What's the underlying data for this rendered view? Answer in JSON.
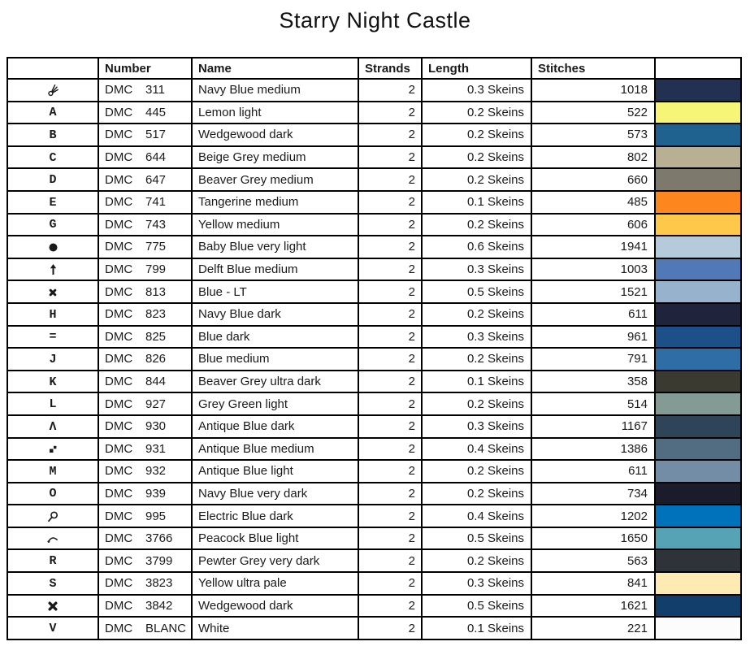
{
  "title": "Starry Night Castle",
  "table": {
    "headers": [
      "",
      "Number",
      "Name",
      "Strands",
      "Length",
      "Stitches",
      ""
    ],
    "rows": [
      {
        "symbol": {
          "type": "icon",
          "icon": "shears-icon"
        },
        "brand": "DMC",
        "code": "311",
        "name": "Navy Blue medium",
        "strands": "2",
        "length": "0.3 Skeins",
        "stitches": "1018",
        "color": "#223152"
      },
      {
        "symbol": {
          "type": "text",
          "glyph": "A"
        },
        "brand": "DMC",
        "code": "445",
        "name": "Lemon light",
        "strands": "2",
        "length": "0.2 Skeins",
        "stitches": "522",
        "color": "#f7f577"
      },
      {
        "symbol": {
          "type": "text",
          "glyph": "B"
        },
        "brand": "DMC",
        "code": "517",
        "name": "Wedgewood dark",
        "strands": "2",
        "length": "0.2 Skeins",
        "stitches": "573",
        "color": "#20628f"
      },
      {
        "symbol": {
          "type": "text",
          "glyph": "C"
        },
        "brand": "DMC",
        "code": "644",
        "name": "Beige Grey medium",
        "strands": "2",
        "length": "0.2 Skeins",
        "stitches": "802",
        "color": "#b9b094"
      },
      {
        "symbol": {
          "type": "text",
          "glyph": "D"
        },
        "brand": "DMC",
        "code": "647",
        "name": "Beaver Grey medium",
        "strands": "2",
        "length": "0.2 Skeins",
        "stitches": "660",
        "color": "#7d796c"
      },
      {
        "symbol": {
          "type": "text",
          "glyph": "E"
        },
        "brand": "DMC",
        "code": "741",
        "name": "Tangerine medium",
        "strands": "2",
        "length": "0.1 Skeins",
        "stitches": "485",
        "color": "#fe861e"
      },
      {
        "symbol": {
          "type": "text",
          "glyph": "G"
        },
        "brand": "DMC",
        "code": "743",
        "name": "Yellow medium",
        "strands": "2",
        "length": "0.2 Skeins",
        "stitches": "606",
        "color": "#fec84b"
      },
      {
        "symbol": {
          "type": "icon",
          "icon": "filled-circle-icon"
        },
        "brand": "DMC",
        "code": "775",
        "name": "Baby Blue very light",
        "strands": "2",
        "length": "0.6 Skeins",
        "stitches": "1941",
        "color": "#b5cbdc"
      },
      {
        "symbol": {
          "type": "icon",
          "icon": "up-arrow-icon"
        },
        "brand": "DMC",
        "code": "799",
        "name": "Delft Blue medium",
        "strands": "2",
        "length": "0.3 Skeins",
        "stitches": "1003",
        "color": "#5179b7"
      },
      {
        "symbol": {
          "type": "icon",
          "icon": "heavy-asterisk-icon"
        },
        "brand": "DMC",
        "code": "813",
        "name": "Blue - LT",
        "strands": "2",
        "length": "0.5 Skeins",
        "stitches": "1521",
        "color": "#96b2cd"
      },
      {
        "symbol": {
          "type": "text",
          "glyph": "H"
        },
        "brand": "DMC",
        "code": "823",
        "name": "Navy Blue dark",
        "strands": "2",
        "length": "0.2 Skeins",
        "stitches": "611",
        "color": "#20233c"
      },
      {
        "symbol": {
          "type": "text",
          "glyph": "="
        },
        "brand": "DMC",
        "code": "825",
        "name": "Blue dark",
        "strands": "2",
        "length": "0.3 Skeins",
        "stitches": "961",
        "color": "#1d4f88"
      },
      {
        "symbol": {
          "type": "text",
          "glyph": "J"
        },
        "brand": "DMC",
        "code": "826",
        "name": "Blue medium",
        "strands": "2",
        "length": "0.2 Skeins",
        "stitches": "791",
        "color": "#2f6da7"
      },
      {
        "symbol": {
          "type": "text",
          "glyph": "K"
        },
        "brand": "DMC",
        "code": "844",
        "name": "Beaver Grey ultra dark",
        "strands": "2",
        "length": "0.1 Skeins",
        "stitches": "358",
        "color": "#3b3a31"
      },
      {
        "symbol": {
          "type": "text",
          "glyph": "L"
        },
        "brand": "DMC",
        "code": "927",
        "name": "Grey Green light",
        "strands": "2",
        "length": "0.2 Skeins",
        "stitches": "514",
        "color": "#849a94"
      },
      {
        "symbol": {
          "type": "text",
          "glyph": "Λ"
        },
        "brand": "DMC",
        "code": "930",
        "name": "Antique Blue dark",
        "strands": "2",
        "length": "0.3 Skeins",
        "stitches": "1167",
        "color": "#2f4459"
      },
      {
        "symbol": {
          "type": "icon",
          "icon": "diagonal-squares-icon"
        },
        "brand": "DMC",
        "code": "931",
        "name": "Antique Blue medium",
        "strands": "2",
        "length": "0.4 Skeins",
        "stitches": "1386",
        "color": "#526c81"
      },
      {
        "symbol": {
          "type": "text",
          "glyph": "M"
        },
        "brand": "DMC",
        "code": "932",
        "name": "Antique Blue light",
        "strands": "2",
        "length": "0.2 Skeins",
        "stitches": "611",
        "color": "#748da7"
      },
      {
        "symbol": {
          "type": "text",
          "glyph": "O"
        },
        "brand": "DMC",
        "code": "939",
        "name": "Navy Blue very dark",
        "strands": "2",
        "length": "0.2 Skeins",
        "stitches": "734",
        "color": "#1b1c2b"
      },
      {
        "symbol": {
          "type": "icon",
          "icon": "magnifier-icon"
        },
        "brand": "DMC",
        "code": "995",
        "name": "Electric Blue dark",
        "strands": "2",
        "length": "0.4 Skeins",
        "stitches": "1202",
        "color": "#0071bb"
      },
      {
        "symbol": {
          "type": "icon",
          "icon": "arc-dot-icon"
        },
        "brand": "DMC",
        "code": "3766",
        "name": "Peacock Blue light",
        "strands": "2",
        "length": "0.5 Skeins",
        "stitches": "1650",
        "color": "#56a3b5"
      },
      {
        "symbol": {
          "type": "text",
          "glyph": "R"
        },
        "brand": "DMC",
        "code": "3799",
        "name": "Pewter Grey very dark",
        "strands": "2",
        "length": "0.2 Skeins",
        "stitches": "563",
        "color": "#2e333a"
      },
      {
        "symbol": {
          "type": "text",
          "glyph": "S"
        },
        "brand": "DMC",
        "code": "3823",
        "name": "Yellow ultra pale",
        "strands": "2",
        "length": "0.3 Skeins",
        "stitches": "841",
        "color": "#feeab3"
      },
      {
        "symbol": {
          "type": "icon",
          "icon": "heavy-x-icon"
        },
        "brand": "DMC",
        "code": "3842",
        "name": "Wedgewood dark",
        "strands": "2",
        "length": "0.5 Skeins",
        "stitches": "1621",
        "color": "#123e6c"
      },
      {
        "symbol": {
          "type": "text",
          "glyph": "V"
        },
        "brand": "DMC",
        "code": "BLANC",
        "name": "White",
        "strands": "2",
        "length": "0.1 Skeins",
        "stitches": "221",
        "color": "#fcfcfc"
      }
    ]
  }
}
